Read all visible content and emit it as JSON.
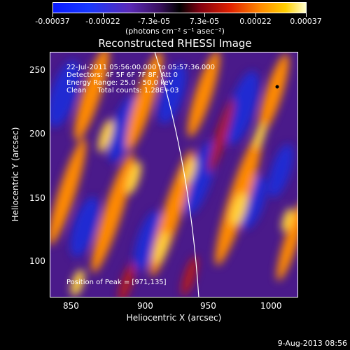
{
  "colorbar": {
    "ticks": [
      "-0.00037",
      "-0.00022",
      "-7.3e-05",
      "7.3e-05",
      "0.00022",
      "0.00037"
    ],
    "units": "(photons cm⁻² s⁻¹ asec⁻²)"
  },
  "title": "Reconstructed RHESSI Image",
  "info": {
    "time": "22-Jul-2011 05:56:00.000 to 05:57:36.000",
    "detectors": "Detectors: 4F 5F 6F 7F 8F, Att 0",
    "energy": "Energy Range: 25.0 - 50.0 keV",
    "clean": "Clean     Total counts: 1.28E+03"
  },
  "peak": "Position of Peak = [971,135]",
  "axes": {
    "xlabel": "Heliocentric X (arcsec)",
    "ylabel": "Heliocentric Y (arcsec)",
    "xticks": [
      "850",
      "900",
      "950",
      "1000"
    ],
    "yticks": [
      "100",
      "150",
      "200",
      "250"
    ]
  },
  "date": "9-Aug-2013 08:56",
  "colors": {
    "background": "#000000",
    "text": "#ffffff"
  }
}
